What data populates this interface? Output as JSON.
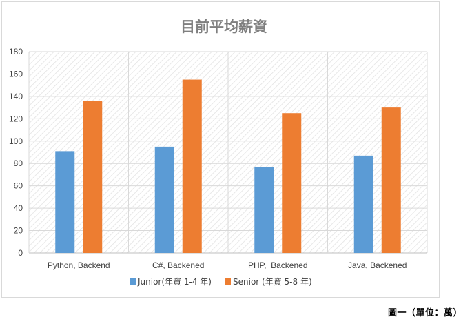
{
  "chart_data": {
    "type": "bar",
    "title": "目前平均薪資",
    "categories": [
      "Python, Backend",
      "C#, Backened",
      "PHP,  Backened",
      "Java, Backened"
    ],
    "series": [
      {
        "name": "Junior(年資 1-4 年)",
        "color": "#5b9bd5",
        "values": [
          91,
          95,
          77,
          87
        ]
      },
      {
        "name": "Senior (年資 5-8 年)",
        "color": "#ed7d31",
        "values": [
          136,
          155,
          125,
          130
        ]
      }
    ],
    "ylim": [
      0,
      180
    ],
    "yticks": [
      "0",
      "20",
      "40",
      "60",
      "80",
      "100",
      "120",
      "140",
      "160",
      "180"
    ],
    "xlabel": "",
    "ylabel": "",
    "grid": true,
    "legend": "bottom"
  },
  "caption": "圖一（單位：萬）"
}
